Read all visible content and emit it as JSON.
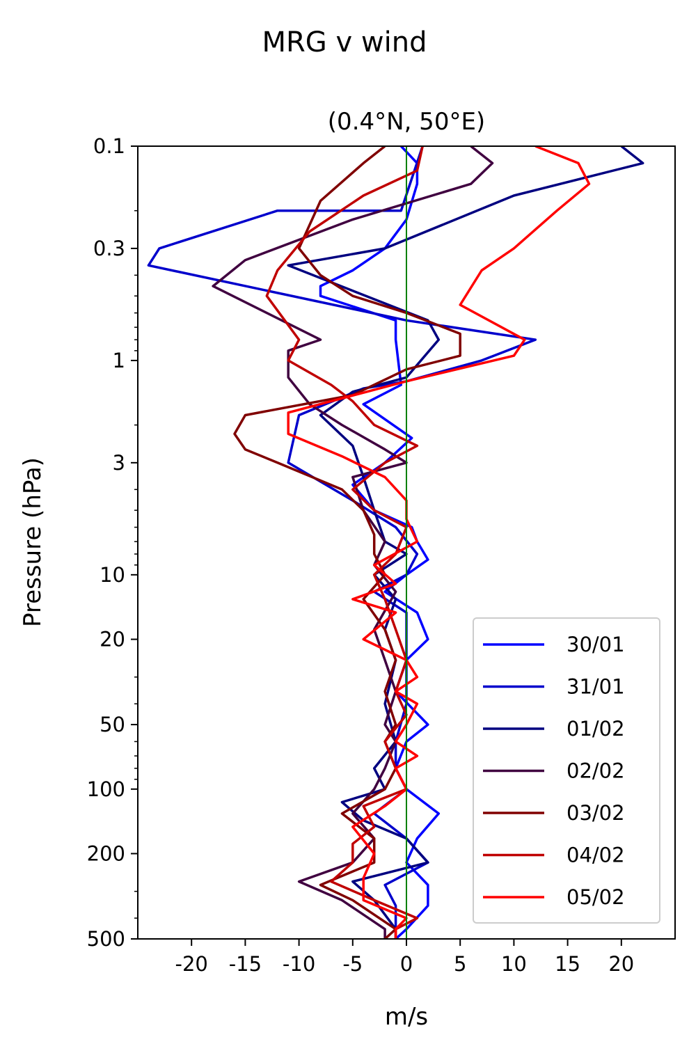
{
  "chart_data": {
    "type": "line",
    "suptitle": "MRG v wind",
    "title": "(0.4°N, 50°E)",
    "xlabel": "m/s",
    "ylabel": "Pressure (hPa)",
    "xlim": [
      -25,
      25
    ],
    "ylim": [
      500,
      0.1
    ],
    "yscale": "log",
    "xticks": [
      -20,
      -15,
      -10,
      -5,
      0,
      5,
      10,
      15,
      20
    ],
    "xtick_labels": [
      "-20",
      "-15",
      "-10",
      "-5",
      "0",
      "5",
      "10",
      "15",
      "20"
    ],
    "yticks": [
      0.1,
      0.3,
      1,
      3,
      10,
      20,
      50,
      100,
      200,
      500
    ],
    "ytick_labels": [
      "0.1",
      "0.3",
      "1",
      "3",
      "10",
      "20",
      "50",
      "100",
      "200",
      "500"
    ],
    "reference_line": {
      "x": 0,
      "color": "#008000"
    },
    "legend_position": "lower-right",
    "series": [
      {
        "name": "30/01",
        "color": "#0000ff",
        "points": [
          [
            -0.5,
            0.1
          ],
          [
            1,
            0.12
          ],
          [
            1,
            0.15
          ],
          [
            0,
            0.22
          ],
          [
            -2,
            0.3
          ],
          [
            -5,
            0.38
          ],
          [
            -8,
            0.45
          ],
          [
            -8,
            0.5
          ],
          [
            -1,
            0.65
          ],
          [
            -1,
            0.8
          ],
          [
            -0.5,
            1.3
          ],
          [
            -4,
            1.6
          ],
          [
            0.5,
            2.3
          ],
          [
            -2,
            3
          ],
          [
            -5,
            3.8
          ],
          [
            -3,
            5
          ],
          [
            0.5,
            6
          ],
          [
            1,
            7
          ],
          [
            2,
            8.5
          ],
          [
            0,
            10
          ],
          [
            -2,
            12
          ],
          [
            1,
            15
          ],
          [
            2,
            20
          ],
          [
            0,
            25
          ],
          [
            -1,
            35
          ],
          [
            2,
            50
          ],
          [
            0,
            60
          ],
          [
            -1,
            80
          ],
          [
            0,
            100
          ],
          [
            3,
            130
          ],
          [
            1,
            170
          ],
          [
            0,
            220
          ],
          [
            2,
            280
          ],
          [
            2,
            350
          ],
          [
            0,
            450
          ],
          [
            -1,
            500
          ]
        ]
      },
      {
        "name": "31/01",
        "color": "#0000cc",
        "points": [
          [
            1.5,
            0.1
          ],
          [
            -0.5,
            0.2
          ],
          [
            -12,
            0.2
          ],
          [
            -23,
            0.3
          ],
          [
            -24,
            0.36
          ],
          [
            0,
            0.65
          ],
          [
            12,
            0.8
          ],
          [
            7,
            1.0
          ],
          [
            0,
            1.25
          ],
          [
            -4,
            1.35
          ],
          [
            -10,
            1.8
          ],
          [
            -11,
            3
          ],
          [
            -5,
            4.5
          ],
          [
            -1,
            6
          ],
          [
            1,
            8
          ],
          [
            0,
            10
          ],
          [
            -3,
            12
          ],
          [
            0,
            15
          ],
          [
            0,
            25
          ],
          [
            0,
            40
          ],
          [
            -1,
            60
          ],
          [
            -1,
            80
          ],
          [
            0,
            100
          ],
          [
            -3,
            130
          ],
          [
            0,
            170
          ],
          [
            2,
            220
          ],
          [
            -2,
            280
          ],
          [
            -1,
            350
          ],
          [
            -1,
            450
          ],
          [
            -1,
            500
          ]
        ]
      },
      {
        "name": "01/02",
        "color": "#000080",
        "points": [
          [
            20,
            0.1
          ],
          [
            22,
            0.12
          ],
          [
            10,
            0.17
          ],
          [
            -2,
            0.3
          ],
          [
            -11,
            0.36
          ],
          [
            2,
            0.65
          ],
          [
            3,
            0.8
          ],
          [
            0,
            1.2
          ],
          [
            -5,
            1.4
          ],
          [
            -8,
            1.8
          ],
          [
            -5,
            2.5
          ],
          [
            -4,
            3.5
          ],
          [
            -3,
            5
          ],
          [
            -2,
            7
          ],
          [
            0,
            8
          ],
          [
            -3,
            10
          ],
          [
            -1,
            13
          ],
          [
            -2,
            18
          ],
          [
            -1,
            25
          ],
          [
            -2,
            40
          ],
          [
            -1,
            60
          ],
          [
            -3,
            80
          ],
          [
            -2,
            100
          ],
          [
            -6,
            115
          ],
          [
            -4,
            140
          ],
          [
            0,
            170
          ],
          [
            2,
            220
          ],
          [
            -5,
            270
          ],
          [
            -3,
            330
          ],
          [
            -1,
            450
          ],
          [
            -1,
            500
          ]
        ]
      },
      {
        "name": "02/02",
        "color": "#400040",
        "points": [
          [
            6,
            0.1
          ],
          [
            8,
            0.12
          ],
          [
            6,
            0.15
          ],
          [
            -5,
            0.22
          ],
          [
            -15,
            0.34
          ],
          [
            -18,
            0.45
          ],
          [
            -8,
            0.8
          ],
          [
            -11,
            0.9
          ],
          [
            -11,
            1.2
          ],
          [
            -9,
            1.6
          ],
          [
            -6,
            2.0
          ],
          [
            -2,
            2.6
          ],
          [
            0,
            3.0
          ],
          [
            -5,
            3.5
          ],
          [
            -4,
            5
          ],
          [
            -2,
            7
          ],
          [
            -3,
            9
          ],
          [
            -1,
            12
          ],
          [
            -3,
            18
          ],
          [
            -2,
            25
          ],
          [
            -1,
            35
          ],
          [
            -2,
            50
          ],
          [
            -1,
            60
          ],
          [
            -2,
            80
          ],
          [
            -3,
            100
          ],
          [
            -5,
            130
          ],
          [
            -3,
            170
          ],
          [
            -5,
            220
          ],
          [
            -10,
            270
          ],
          [
            -6,
            330
          ],
          [
            -2,
            450
          ],
          [
            -2,
            500
          ]
        ]
      },
      {
        "name": "03/02",
        "color": "#800000",
        "points": [
          [
            -2,
            0.1
          ],
          [
            -4,
            0.12
          ],
          [
            -8,
            0.18
          ],
          [
            -10,
            0.3
          ],
          [
            -8,
            0.4
          ],
          [
            -5,
            0.5
          ],
          [
            0,
            0.6
          ],
          [
            5,
            0.75
          ],
          [
            5,
            0.95
          ],
          [
            0,
            1.1
          ],
          [
            -5,
            1.45
          ],
          [
            -15,
            1.8
          ],
          [
            -16,
            2.2
          ],
          [
            -15,
            2.6
          ],
          [
            -12,
            3.0
          ],
          [
            -6,
            4.0
          ],
          [
            -4,
            5
          ],
          [
            -3,
            6.5
          ],
          [
            -3,
            8
          ],
          [
            -2,
            10
          ],
          [
            -4,
            13
          ],
          [
            -2,
            18
          ],
          [
            -1,
            25
          ],
          [
            -2,
            35
          ],
          [
            -1,
            50
          ],
          [
            -2,
            60
          ],
          [
            -1,
            80
          ],
          [
            -2,
            100
          ],
          [
            -6,
            130
          ],
          [
            -3,
            170
          ],
          [
            -3,
            220
          ],
          [
            -8,
            280
          ],
          [
            -5,
            330
          ],
          [
            -1,
            450
          ],
          [
            -2,
            500
          ]
        ]
      },
      {
        "name": "04/02",
        "color": "#c00000",
        "points": [
          [
            1.5,
            0.1
          ],
          [
            1,
            0.13
          ],
          [
            -4,
            0.17
          ],
          [
            -9,
            0.25
          ],
          [
            -12,
            0.38
          ],
          [
            -13,
            0.5
          ],
          [
            -10,
            0.8
          ],
          [
            -11,
            1.0
          ],
          [
            -7,
            1.3
          ],
          [
            -5,
            1.55
          ],
          [
            -3,
            2.0
          ],
          [
            1,
            2.5
          ],
          [
            -2,
            3.0
          ],
          [
            -5,
            4.0
          ],
          [
            -3,
            5
          ],
          [
            0,
            6
          ],
          [
            -1,
            8
          ],
          [
            -3,
            10
          ],
          [
            -2,
            13
          ],
          [
            -1,
            18
          ],
          [
            0,
            25
          ],
          [
            -1,
            35
          ],
          [
            0,
            45
          ],
          [
            -2,
            60
          ],
          [
            -1,
            80
          ],
          [
            0,
            100
          ],
          [
            -4,
            120
          ],
          [
            -3,
            150
          ],
          [
            -5,
            180
          ],
          [
            -5,
            220
          ],
          [
            -7,
            270
          ],
          [
            -3,
            330
          ],
          [
            1,
            400
          ],
          [
            -1,
            450
          ],
          [
            -1,
            500
          ]
        ]
      },
      {
        "name": "05/02",
        "color": "#ff0000",
        "points": [
          [
            12,
            0.1
          ],
          [
            16,
            0.12
          ],
          [
            17,
            0.15
          ],
          [
            14,
            0.2
          ],
          [
            10,
            0.3
          ],
          [
            7,
            0.38
          ],
          [
            5,
            0.55
          ],
          [
            11,
            0.8
          ],
          [
            10,
            0.95
          ],
          [
            0,
            1.25
          ],
          [
            -11,
            1.75
          ],
          [
            -11,
            2.2
          ],
          [
            -6,
            2.8
          ],
          [
            -2,
            3.5
          ],
          [
            0,
            4.5
          ],
          [
            0,
            5.5
          ],
          [
            1,
            7
          ],
          [
            -3,
            9
          ],
          [
            -1,
            11
          ],
          [
            -5,
            13
          ],
          [
            -1,
            15
          ],
          [
            -4,
            20
          ],
          [
            0,
            25
          ],
          [
            1,
            30
          ],
          [
            -1,
            35
          ],
          [
            1,
            40
          ],
          [
            0,
            50
          ],
          [
            -1,
            60
          ],
          [
            1,
            70
          ],
          [
            -1,
            80
          ],
          [
            0,
            100
          ],
          [
            -2,
            120
          ],
          [
            -5,
            150
          ],
          [
            -3,
            200
          ],
          [
            -4,
            260
          ],
          [
            -4,
            330
          ],
          [
            0,
            400
          ],
          [
            -1,
            450
          ],
          [
            -1,
            500
          ]
        ]
      }
    ]
  }
}
